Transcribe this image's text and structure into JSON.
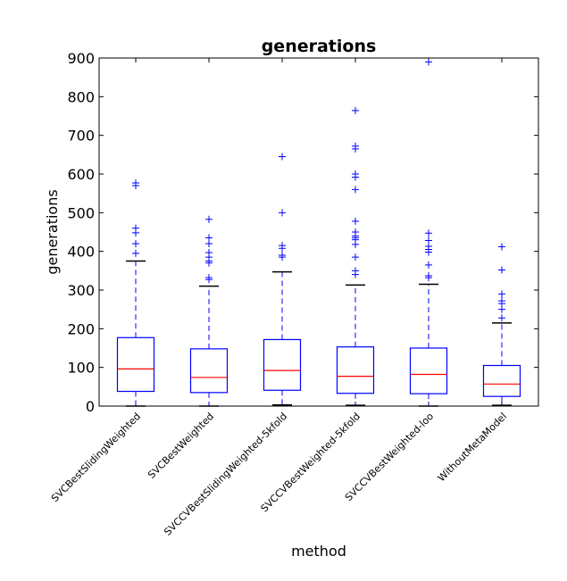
{
  "chart_data": {
    "type": "boxplot",
    "title": "generations",
    "xlabel": "method",
    "ylabel": "generations",
    "ylim": [
      0,
      900
    ],
    "yticks": [
      0,
      100,
      200,
      300,
      400,
      500,
      600,
      700,
      800,
      900
    ],
    "grid": false,
    "categories": [
      "SVCBestSlidingWeighted",
      "SVCBestWeighted",
      "SVCCVBestSlidingWeighted-5kfold",
      "SVCCVBestWeighted-5kfold",
      "SVCCVBestWeighted-loo",
      "WithoutMetaModel"
    ],
    "boxes": [
      {
        "min": 0,
        "q1": 38,
        "median": 96,
        "q3": 177,
        "max": 375,
        "outliers": [
          395,
          420,
          448,
          460,
          570,
          577
        ]
      },
      {
        "min": 0,
        "q1": 35,
        "median": 74,
        "q3": 148,
        "max": 310,
        "outliers": [
          327,
          332,
          370,
          375,
          385,
          397,
          420,
          435,
          483
        ]
      },
      {
        "min": 3,
        "q1": 41,
        "median": 92,
        "q3": 172,
        "max": 347,
        "outliers": [
          385,
          390,
          408,
          415,
          500,
          645
        ]
      },
      {
        "min": 2,
        "q1": 33,
        "median": 77,
        "q3": 153,
        "max": 313,
        "outliers": [
          340,
          350,
          385,
          418,
          430,
          435,
          440,
          450,
          478,
          560,
          592,
          600,
          665,
          672,
          764
        ]
      },
      {
        "min": 0,
        "q1": 32,
        "median": 82,
        "q3": 150,
        "max": 315,
        "outliers": [
          332,
          337,
          365,
          398,
          405,
          413,
          428,
          447,
          890
        ]
      },
      {
        "min": 2,
        "q1": 25,
        "median": 57,
        "q3": 105,
        "max": 215,
        "outliers": [
          228,
          250,
          265,
          272,
          290,
          352,
          412
        ]
      }
    ],
    "colors": {
      "box": "#0000ff",
      "median": "#ff0000",
      "whisker": "#0000ff",
      "cap": "#000000",
      "flier": "#0000ff",
      "axes": "#000000"
    }
  }
}
